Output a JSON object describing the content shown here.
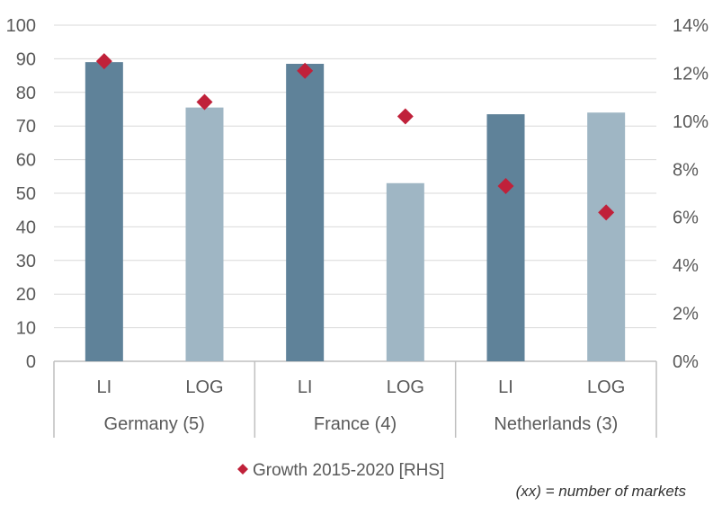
{
  "chart_data": {
    "type": "bar",
    "groups": [
      {
        "label": "Germany (5)",
        "categories": [
          "LI",
          "LOG"
        ]
      },
      {
        "label": "France (4)",
        "categories": [
          "LI",
          "LOG"
        ]
      },
      {
        "label": "Netherlands (3)",
        "categories": [
          "LI",
          "LOG"
        ]
      }
    ],
    "bars": [
      {
        "group": 0,
        "category": "LI",
        "value": 89,
        "color": "#5f8299"
      },
      {
        "group": 0,
        "category": "LOG",
        "value": 75.5,
        "color": "#9fb6c4"
      },
      {
        "group": 1,
        "category": "LI",
        "value": 88.5,
        "color": "#5f8299"
      },
      {
        "group": 1,
        "category": "LOG",
        "value": 53,
        "color": "#9fb6c4"
      },
      {
        "group": 2,
        "category": "LI",
        "value": 73.5,
        "color": "#5f8299"
      },
      {
        "group": 2,
        "category": "LOG",
        "value": 74,
        "color": "#9fb6c4"
      }
    ],
    "growth_series": {
      "name": "Growth 2015-2020 [RHS]",
      "values": [
        12.5,
        10.8,
        12.1,
        10.2,
        7.3,
        6.2
      ],
      "color": "#c0213a"
    },
    "y_left": {
      "min": 0,
      "max": 100,
      "ticks": [
        "0",
        "10",
        "20",
        "30",
        "40",
        "50",
        "60",
        "70",
        "80",
        "90",
        "100"
      ]
    },
    "y_right": {
      "min": 0,
      "max": 14,
      "ticks": [
        "0%",
        "2%",
        "4%",
        "6%",
        "8%",
        "10%",
        "12%",
        "14%"
      ]
    },
    "grid": true,
    "legend_position": "bottom-center",
    "note": "(xx) = number of markets"
  }
}
